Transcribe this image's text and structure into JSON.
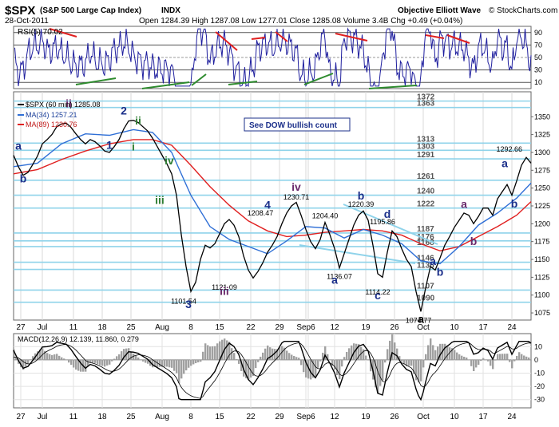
{
  "header": {
    "symbol": "$SPX",
    "name": "(S&P 500 Large Cap Index)",
    "exchange": "INDX",
    "brand": "Objective Elliott Wave",
    "copyright": "© StockCharts.com",
    "date": "28-Oct-2011",
    "quote": "Open 1284.39   High 1287.08   Low 1277.01   Close 1285.08   Volume 3.4B   Chg +0.49 (+0.04%)"
  },
  "colors": {
    "rsi": "#1f1f9e",
    "price": "#000000",
    "ma34": "#2f6fd6",
    "ma89": "#e02020",
    "levels": "#8fd3ea",
    "wave_blue": "#1b2f8a",
    "wave_green": "#2e7d32",
    "wave_purple": "#6b2a6b",
    "divergence_red": "#e02020",
    "divergence_green": "#2e8b2e",
    "macd_hist": "#a0a0a0"
  },
  "rsi_panel": {
    "label": "RSI(5) 70.02",
    "levels": [
      90,
      70,
      50,
      30,
      10
    ]
  },
  "price_panel": {
    "legend": {
      "price": "$SPX (60 min) 1285.08",
      "ma34": "MA(34) 1257.21",
      "ma89": "MA(89) 1230.76"
    },
    "note": "See DOW bullish count",
    "last_price_label": "1292.66",
    "price_ticks": [
      1075,
      1100,
      1125,
      1150,
      1175,
      1200,
      1225,
      1250,
      1275,
      1300,
      1325,
      1350
    ],
    "fib_levels": [
      {
        "value": 1372,
        "label": "1372"
      },
      {
        "value": 1363,
        "label": "1363"
      },
      {
        "value": 1313,
        "label": "1313"
      },
      {
        "value": 1303,
        "label": "1303"
      },
      {
        "value": 1291,
        "label": "1291"
      },
      {
        "value": 1261,
        "label": "1261"
      },
      {
        "value": 1240,
        "label": "1240"
      },
      {
        "value": 1222,
        "label": "1222"
      },
      {
        "value": 1187,
        "label": "1187"
      },
      {
        "value": 1176,
        "label": "1176"
      },
      {
        "value": 1168,
        "label": "1168"
      },
      {
        "value": 1146,
        "label": "1146"
      },
      {
        "value": 1136,
        "label": "1136"
      },
      {
        "value": 1107,
        "label": "1107"
      },
      {
        "value": 1090,
        "label": "1090"
      }
    ],
    "price_labels": [
      {
        "t": 50,
        "v": 1342,
        "label": ""
      },
      {
        "t": 103,
        "v": 1208.47,
        "label": "1208.47"
      },
      {
        "t": 71,
        "v": 1101.54,
        "label": "1101.54"
      },
      {
        "t": 88,
        "v": 1121.09,
        "label": "1121.09"
      },
      {
        "t": 118,
        "v": 1230.71,
        "label": "1230.71"
      },
      {
        "t": 130,
        "v": 1204.4,
        "label": "1204.40"
      },
      {
        "t": 145,
        "v": 1220.39,
        "label": "1220.39"
      },
      {
        "t": 136,
        "v": 1136.07,
        "label": "1136.07"
      },
      {
        "t": 154,
        "v": 1195.86,
        "label": "1195.86"
      },
      {
        "t": 152,
        "v": 1114.22,
        "label": "1114.22"
      },
      {
        "t": 169,
        "v": 1074.77,
        "label": "1074.77"
      }
    ],
    "wave_labels": [
      {
        "t": 2,
        "v": 1304,
        "label": "a",
        "color": "wave_blue"
      },
      {
        "t": 4,
        "v": 1258,
        "label": "b",
        "color": "wave_blue"
      },
      {
        "t": 23,
        "v": 1363,
        "label": "ii",
        "color": "wave_purple"
      },
      {
        "t": 46,
        "v": 1353,
        "label": "2",
        "color": "wave_blue"
      },
      {
        "t": 52,
        "v": 1339,
        "label": "ii",
        "color": "wave_green"
      },
      {
        "t": 50,
        "v": 1303,
        "label": "i",
        "color": "wave_green"
      },
      {
        "t": 40,
        "v": 1305,
        "label": "1",
        "color": "wave_blue"
      },
      {
        "t": 65,
        "v": 1283,
        "label": "iv",
        "color": "wave_green"
      },
      {
        "t": 61,
        "v": 1228,
        "label": "iii",
        "color": "wave_green"
      },
      {
        "t": 106,
        "v": 1221,
        "label": "4",
        "color": "wave_blue"
      },
      {
        "t": 73,
        "v": 1082,
        "label": "3",
        "color": "wave_blue"
      },
      {
        "t": 88,
        "v": 1100,
        "label": "iii",
        "color": "wave_purple"
      },
      {
        "t": 118,
        "v": 1246,
        "label": "iv",
        "color": "wave_purple"
      },
      {
        "t": 145,
        "v": 1234,
        "label": "b",
        "color": "wave_blue"
      },
      {
        "t": 134,
        "v": 1116,
        "label": "a",
        "color": "wave_blue"
      },
      {
        "t": 156,
        "v": 1208,
        "label": "d",
        "color": "wave_blue"
      },
      {
        "t": 152,
        "v": 1094,
        "label": "c",
        "color": "wave_blue"
      },
      {
        "t": 170,
        "v": 1061,
        "label": "a",
        "color": "price"
      },
      {
        "t": 175,
        "v": 1142,
        "label": "a",
        "color": "wave_blue"
      },
      {
        "t": 178,
        "v": 1127,
        "label": "b",
        "color": "wave_blue"
      },
      {
        "t": 188,
        "v": 1222,
        "label": "a",
        "color": "wave_purple"
      },
      {
        "t": 192,
        "v": 1170,
        "label": "b",
        "color": "wave_purple"
      },
      {
        "t": 205,
        "v": 1279,
        "label": "a",
        "color": "wave_blue"
      },
      {
        "t": 209,
        "v": 1223,
        "label": "b",
        "color": "wave_blue"
      }
    ]
  },
  "macd_panel": {
    "label": "MACD(12,26,9) 12.139, 11.860, 0.279",
    "ticks": [
      10,
      0,
      -10,
      -20,
      -30
    ]
  },
  "x_axis": {
    "ticks": [
      {
        "t": 3,
        "label": "27"
      },
      {
        "t": 12,
        "label": "Jul"
      },
      {
        "t": 25,
        "label": "11"
      },
      {
        "t": 37,
        "label": "18"
      },
      {
        "t": 49,
        "label": "25"
      },
      {
        "t": 62,
        "label": "Aug"
      },
      {
        "t": 74,
        "label": "8"
      },
      {
        "t": 86,
        "label": "15"
      },
      {
        "t": 99,
        "label": "22"
      },
      {
        "t": 111,
        "label": "29"
      },
      {
        "t": 122,
        "label": "Sep"
      },
      {
        "t": 123,
        "label": "6"
      },
      {
        "t": 134,
        "label": "12"
      },
      {
        "t": 147,
        "label": "19"
      },
      {
        "t": 159,
        "label": "26"
      },
      {
        "t": 171,
        "label": "Oct"
      },
      {
        "t": 184,
        "label": "10"
      },
      {
        "t": 196,
        "label": "17"
      },
      {
        "t": 208,
        "label": "24"
      }
    ]
  },
  "chart_data": {
    "type": "line",
    "title": "$SPX (S&P 500 Large Cap Index) INDX",
    "xlabel": "",
    "ylabel": "",
    "ylim": [
      1065,
      1385
    ],
    "x_range": [
      0,
      216
    ],
    "series": [
      {
        "name": "$SPX (60 min) 1285.08",
        "points": [
          [
            0,
            1296
          ],
          [
            2,
            1280
          ],
          [
            4,
            1268
          ],
          [
            6,
            1272
          ],
          [
            8,
            1283
          ],
          [
            10,
            1295
          ],
          [
            12,
            1312
          ],
          [
            14,
            1318
          ],
          [
            16,
            1325
          ],
          [
            18,
            1336
          ],
          [
            20,
            1340
          ],
          [
            22,
            1341
          ],
          [
            24,
            1335
          ],
          [
            26,
            1326
          ],
          [
            28,
            1318
          ],
          [
            30,
            1312
          ],
          [
            32,
            1318
          ],
          [
            34,
            1315
          ],
          [
            36,
            1309
          ],
          [
            38,
            1302
          ],
          [
            40,
            1300
          ],
          [
            42,
            1308
          ],
          [
            44,
            1318
          ],
          [
            46,
            1333
          ],
          [
            48,
            1344
          ],
          [
            50,
            1345
          ],
          [
            52,
            1342
          ],
          [
            54,
            1336
          ],
          [
            56,
            1330
          ],
          [
            58,
            1320
          ],
          [
            60,
            1308
          ],
          [
            62,
            1296
          ],
          [
            64,
            1284
          ],
          [
            66,
            1270
          ],
          [
            68,
            1240
          ],
          [
            70,
            1185
          ],
          [
            72,
            1140
          ],
          [
            74,
            1105
          ],
          [
            76,
            1118
          ],
          [
            78,
            1150
          ],
          [
            80,
            1170
          ],
          [
            82,
            1166
          ],
          [
            84,
            1172
          ],
          [
            86,
            1186
          ],
          [
            88,
            1200
          ],
          [
            90,
            1206
          ],
          [
            92,
            1198
          ],
          [
            94,
            1182
          ],
          [
            96,
            1155
          ],
          [
            98,
            1135
          ],
          [
            100,
            1124
          ],
          [
            102,
            1133
          ],
          [
            104,
            1145
          ],
          [
            106,
            1160
          ],
          [
            108,
            1170
          ],
          [
            110,
            1182
          ],
          [
            112,
            1200
          ],
          [
            114,
            1215
          ],
          [
            116,
            1225
          ],
          [
            118,
            1230
          ],
          [
            120,
            1212
          ],
          [
            122,
            1192
          ],
          [
            124,
            1175
          ],
          [
            126,
            1165
          ],
          [
            128,
            1178
          ],
          [
            130,
            1202
          ],
          [
            132,
            1185
          ],
          [
            134,
            1165
          ],
          [
            136,
            1138
          ],
          [
            138,
            1158
          ],
          [
            140,
            1178
          ],
          [
            142,
            1198
          ],
          [
            144,
            1212
          ],
          [
            146,
            1218
          ],
          [
            148,
            1205
          ],
          [
            150,
            1170
          ],
          [
            152,
            1130
          ],
          [
            154,
            1125
          ],
          [
            156,
            1160
          ],
          [
            158,
            1190
          ],
          [
            160,
            1182
          ],
          [
            162,
            1165
          ],
          [
            164,
            1150
          ],
          [
            166,
            1140
          ],
          [
            168,
            1105
          ],
          [
            170,
            1077
          ],
          [
            172,
            1110
          ],
          [
            174,
            1140
          ],
          [
            176,
            1135
          ],
          [
            178,
            1152
          ],
          [
            180,
            1170
          ],
          [
            182,
            1182
          ],
          [
            184,
            1195
          ],
          [
            186,
            1205
          ],
          [
            188,
            1215
          ],
          [
            190,
            1212
          ],
          [
            192,
            1200
          ],
          [
            194,
            1210
          ],
          [
            196,
            1222
          ],
          [
            198,
            1222
          ],
          [
            200,
            1212
          ],
          [
            202,
            1235
          ],
          [
            204,
            1245
          ],
          [
            206,
            1255
          ],
          [
            208,
            1240
          ],
          [
            210,
            1260
          ],
          [
            212,
            1282
          ],
          [
            214,
            1293
          ],
          [
            216,
            1285
          ]
        ]
      },
      {
        "name": "MA(34) 1257.21",
        "points": [
          [
            0,
            1280
          ],
          [
            10,
            1285
          ],
          [
            20,
            1312
          ],
          [
            30,
            1326
          ],
          [
            40,
            1324
          ],
          [
            50,
            1332
          ],
          [
            58,
            1328
          ],
          [
            66,
            1300
          ],
          [
            74,
            1240
          ],
          [
            82,
            1196
          ],
          [
            90,
            1178
          ],
          [
            98,
            1168
          ],
          [
            106,
            1158
          ],
          [
            114,
            1176
          ],
          [
            122,
            1196
          ],
          [
            130,
            1194
          ],
          [
            138,
            1180
          ],
          [
            146,
            1192
          ],
          [
            154,
            1184
          ],
          [
            162,
            1172
          ],
          [
            170,
            1148
          ],
          [
            178,
            1144
          ],
          [
            186,
            1168
          ],
          [
            194,
            1198
          ],
          [
            202,
            1215
          ],
          [
            210,
            1236
          ],
          [
            216,
            1257
          ]
        ]
      },
      {
        "name": "MA(89) 1230.76",
        "points": [
          [
            0,
            1270
          ],
          [
            10,
            1276
          ],
          [
            20,
            1290
          ],
          [
            30,
            1302
          ],
          [
            40,
            1312
          ],
          [
            50,
            1318
          ],
          [
            58,
            1318
          ],
          [
            66,
            1310
          ],
          [
            74,
            1282
          ],
          [
            82,
            1252
          ],
          [
            90,
            1226
          ],
          [
            98,
            1204
          ],
          [
            106,
            1190
          ],
          [
            114,
            1182
          ],
          [
            122,
            1184
          ],
          [
            130,
            1188
          ],
          [
            138,
            1190
          ],
          [
            146,
            1192
          ],
          [
            154,
            1190
          ],
          [
            162,
            1184
          ],
          [
            170,
            1172
          ],
          [
            178,
            1162
          ],
          [
            186,
            1168
          ],
          [
            194,
            1182
          ],
          [
            202,
            1196
          ],
          [
            210,
            1212
          ],
          [
            216,
            1231
          ]
        ]
      }
    ]
  }
}
